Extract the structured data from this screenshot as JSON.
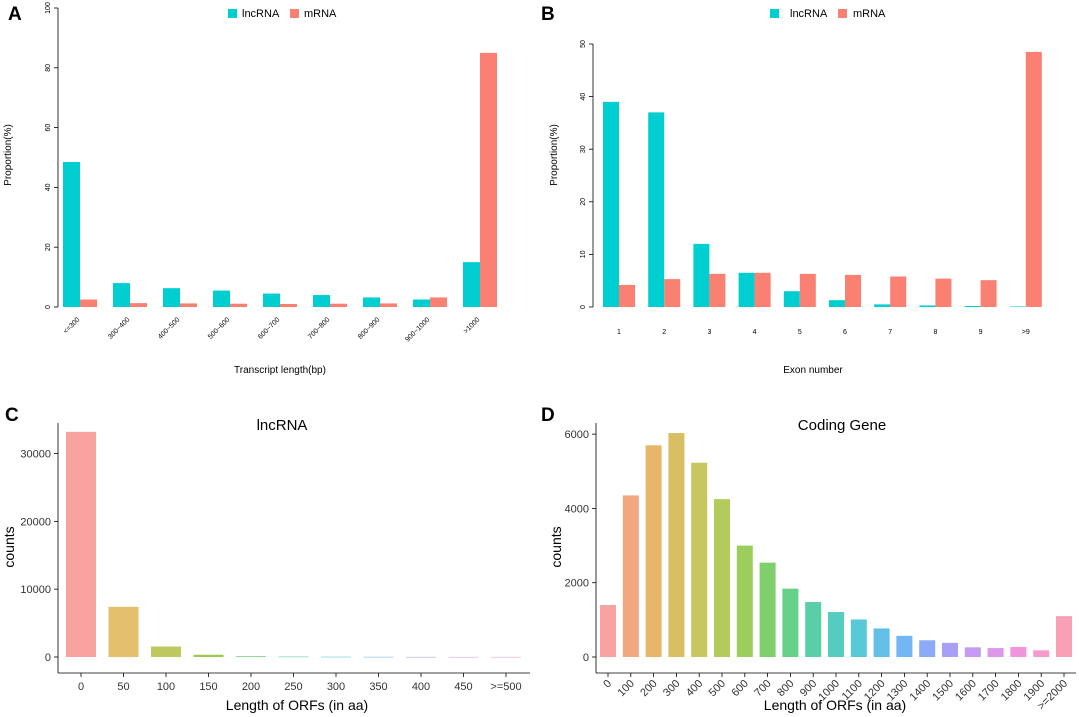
{
  "colors": {
    "lncRNA": "#00CED1",
    "mRNA": "#FA8072"
  },
  "chart_data": [
    {
      "panel": "A",
      "type": "bar",
      "legend": [
        "lncRNA",
        "mRNA"
      ],
      "xlabel": "Transcript length(bp)",
      "ylabel": "Proportion(%)",
      "ylim": [
        0,
        100
      ],
      "yticks": [
        0,
        20,
        40,
        60,
        80,
        100
      ],
      "categories": [
        "<=300",
        "300~400",
        "400~500",
        "500~600",
        "600~700",
        "700~800",
        "800~900",
        "900~1000",
        ">1000"
      ],
      "series": [
        {
          "name": "lncRNA",
          "values": [
            48.5,
            8,
            6.3,
            5.5,
            4.5,
            4,
            3.2,
            2.5,
            15
          ]
        },
        {
          "name": "mRNA",
          "values": [
            2.5,
            1.3,
            1.2,
            1.1,
            1,
            1.1,
            1.2,
            3.2,
            85
          ]
        }
      ]
    },
    {
      "panel": "B",
      "type": "bar",
      "legend": [
        "lncRNA",
        "mRNA"
      ],
      "xlabel": "Exon number",
      "ylabel": "Proportion(%)",
      "ylim": [
        0,
        50
      ],
      "yticks": [
        0,
        10,
        20,
        30,
        40,
        50
      ],
      "categories": [
        "1",
        "2",
        "3",
        "4",
        "5",
        "6",
        "7",
        "8",
        "9",
        ">9"
      ],
      "series": [
        {
          "name": "lncRNA",
          "values": [
            39,
            37,
            12,
            6.5,
            3,
            1.3,
            0.5,
            0.3,
            0.2,
            0.1
          ]
        },
        {
          "name": "mRNA",
          "values": [
            4.2,
            5.3,
            6.3,
            6.5,
            6.3,
            6.1,
            5.8,
            5.4,
            5.1,
            48.5
          ]
        }
      ]
    },
    {
      "panel": "C",
      "type": "bar",
      "title": "lncRNA",
      "xlabel": "Length of ORFs (in aa)",
      "ylabel": "counts",
      "ylim": [
        0,
        34500
      ],
      "yticks": [
        0,
        10000,
        20000,
        30000
      ],
      "categories": [
        "0",
        "50",
        "100",
        "150",
        "200",
        "250",
        "300",
        "350",
        "400",
        "450",
        ">=500"
      ],
      "values": [
        33200,
        7400,
        1550,
        330,
        110,
        60,
        40,
        30,
        20,
        15,
        10
      ],
      "bar_colors": [
        "#F8A3A0",
        "#E4BF6E",
        "#BFC760",
        "#9CC94F",
        "#6FCB7E",
        "#58CBB5",
        "#5EC8DD",
        "#79B6F2",
        "#AAA8F5",
        "#D6A0F2",
        "#F39ED8"
      ]
    },
    {
      "panel": "D",
      "type": "bar",
      "title": "Coding Gene",
      "xlabel": "Length of ORFs (in aa)",
      "ylabel": "counts",
      "ylim": [
        0,
        6300
      ],
      "yticks": [
        0,
        2000,
        4000,
        6000
      ],
      "categories": [
        "0",
        "100",
        "200",
        "300",
        "400",
        "500",
        "600",
        "700",
        "800",
        "900",
        "1000",
        "1100",
        "1200",
        "1300",
        "1400",
        "1500",
        "1600",
        "1700",
        "1800",
        "1900",
        ">=2000"
      ],
      "values": [
        1400,
        4350,
        5700,
        6030,
        5230,
        4250,
        3000,
        2540,
        1840,
        1480,
        1210,
        1010,
        770,
        570,
        450,
        380,
        260,
        240,
        270,
        180,
        1100
      ],
      "bar_colors": [
        "#F8A3A0",
        "#F2A87F",
        "#E6B66B",
        "#DABE63",
        "#C8C65E",
        "#B3CB5C",
        "#9CCE5E",
        "#7FD06C",
        "#66D088",
        "#5ACEA6",
        "#55CCBF",
        "#58C8D6",
        "#62C0E8",
        "#73B6F4",
        "#8BAAF8",
        "#A8A0F7",
        "#C59AF2",
        "#DC96EA",
        "#EE95DC",
        "#F79ACB",
        "#F8A0B6"
      ]
    }
  ]
}
